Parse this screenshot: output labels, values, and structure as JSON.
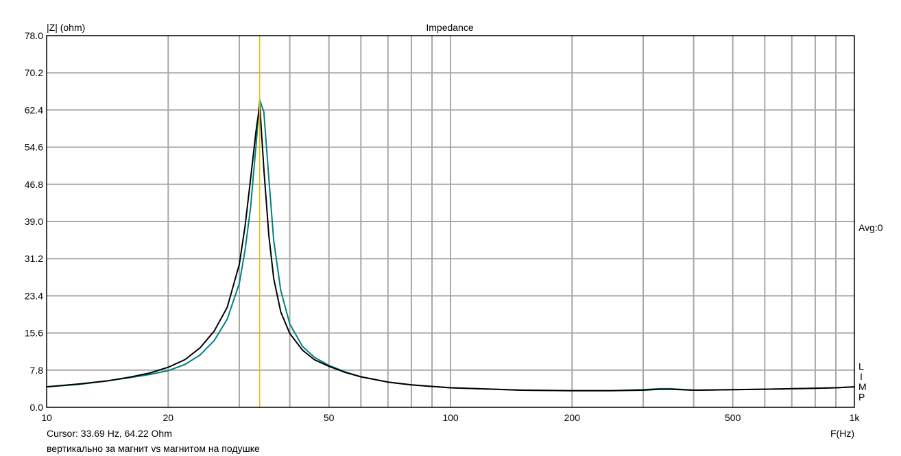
{
  "chart_data": {
    "type": "line",
    "title": "Impedance",
    "ylabel": "|Z| (ohm)",
    "xlabel": "F(Hz)",
    "x_scale": "log",
    "xlim": [
      10,
      1000
    ],
    "ylim": [
      0,
      78
    ],
    "grid": true,
    "y_ticks": [
      "0.0",
      "7.8",
      "15.6",
      "23.4",
      "31.2",
      "39.0",
      "46.8",
      "54.6",
      "62.4",
      "70.2",
      "78.0"
    ],
    "x_ticks": [
      {
        "value": 10,
        "label": "10"
      },
      {
        "value": 20,
        "label": "20"
      },
      {
        "value": 50,
        "label": "50"
      },
      {
        "value": 100,
        "label": "100"
      },
      {
        "value": 200,
        "label": "200"
      },
      {
        "value": 500,
        "label": "500"
      },
      {
        "value": 1000,
        "label": "1k"
      }
    ],
    "right_labels": {
      "avg": "Avg:0",
      "letters": [
        "L",
        "I",
        "M",
        "P"
      ]
    },
    "cursor": {
      "x": 33.69,
      "y": 64.22,
      "color": "#e0c000"
    },
    "series": [
      {
        "color": "#008080",
        "x": [
          10,
          12,
          14,
          16,
          18,
          20,
          22,
          24,
          26,
          28,
          30,
          31,
          32,
          33,
          33.7,
          34.5,
          35.5,
          36.5,
          38,
          40,
          43,
          46,
          50,
          55,
          60,
          70,
          80,
          100,
          150,
          200,
          250,
          300,
          330,
          350,
          400,
          500,
          600,
          700,
          800,
          900,
          1000
        ],
        "y": [
          4.3,
          4.8,
          5.5,
          6.2,
          6.9,
          7.7,
          9.0,
          11.0,
          14.0,
          18.5,
          26.0,
          33.0,
          42.0,
          55.0,
          64.5,
          62.0,
          48.0,
          35.0,
          24.5,
          17.5,
          12.8,
          10.5,
          8.8,
          7.4,
          6.4,
          5.3,
          4.7,
          4.1,
          3.6,
          3.5,
          3.5,
          3.7,
          3.9,
          3.9,
          3.6,
          3.7,
          3.8,
          3.9,
          4.0,
          4.1,
          4.3
        ]
      },
      {
        "color": "#000000",
        "x": [
          10,
          12,
          14,
          16,
          18,
          20,
          22,
          24,
          26,
          28,
          30,
          31,
          32,
          33,
          33.7,
          34.5,
          35.5,
          36.5,
          38,
          40,
          43,
          46,
          50,
          55,
          60,
          70,
          80,
          100,
          150,
          200,
          250,
          300,
          330,
          350,
          400,
          500,
          600,
          700,
          800,
          900,
          1000
        ],
        "y": [
          4.3,
          4.9,
          5.5,
          6.3,
          7.2,
          8.4,
          10.0,
          12.5,
          16.0,
          21.0,
          30.0,
          38.0,
          48.0,
          58.0,
          63.5,
          50.0,
          36.0,
          27.0,
          20.0,
          15.5,
          12.0,
          10.0,
          8.6,
          7.3,
          6.4,
          5.3,
          4.7,
          4.1,
          3.6,
          3.5,
          3.5,
          3.6,
          3.8,
          3.8,
          3.6,
          3.7,
          3.8,
          3.9,
          4.0,
          4.1,
          4.3
        ]
      }
    ]
  },
  "footer": {
    "cursor_readout": "Cursor: 33.69 Hz, 64.22 Ohm",
    "caption": "вертикально за магнит vs магнитом на подушке"
  }
}
